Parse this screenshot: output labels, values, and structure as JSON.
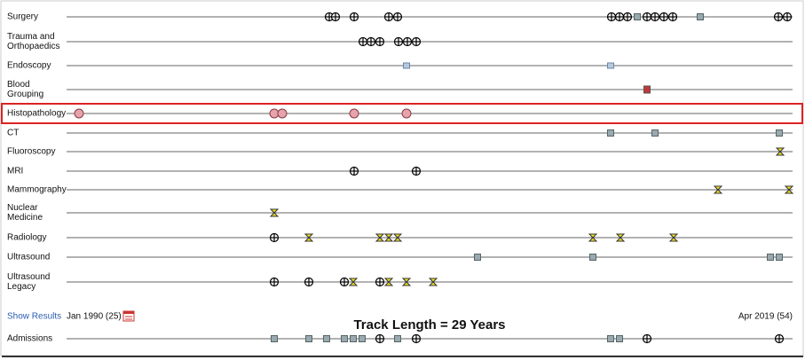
{
  "rows": [
    {
      "label": [
        "Surgery"
      ]
    },
    {
      "label": [
        "Trauma and",
        "Orthopaedics"
      ]
    },
    {
      "label": [
        "Endoscopy"
      ]
    },
    {
      "label": [
        "Blood",
        "Grouping"
      ]
    },
    {
      "label": [
        "Histopathology"
      ]
    },
    {
      "label": [
        "CT"
      ]
    },
    {
      "label": [
        "Fluoroscopy"
      ]
    },
    {
      "label": [
        "MRI"
      ]
    },
    {
      "label": [
        "Mammography"
      ]
    },
    {
      "label": [
        "Nuclear",
        "Medicine"
      ]
    },
    {
      "label": [
        "Radiology"
      ]
    },
    {
      "label": [
        "Ultrasound"
      ]
    },
    {
      "label": [
        "Ultrasound",
        "Legacy"
      ]
    }
  ],
  "footer": {
    "show_results": "Show Results",
    "start": "Jan 1990 (25)",
    "track_length": "Track Length = 29 Years",
    "end": "Apr 2019 (54)"
  },
  "admissions": {
    "label": "Admissions"
  }
}
